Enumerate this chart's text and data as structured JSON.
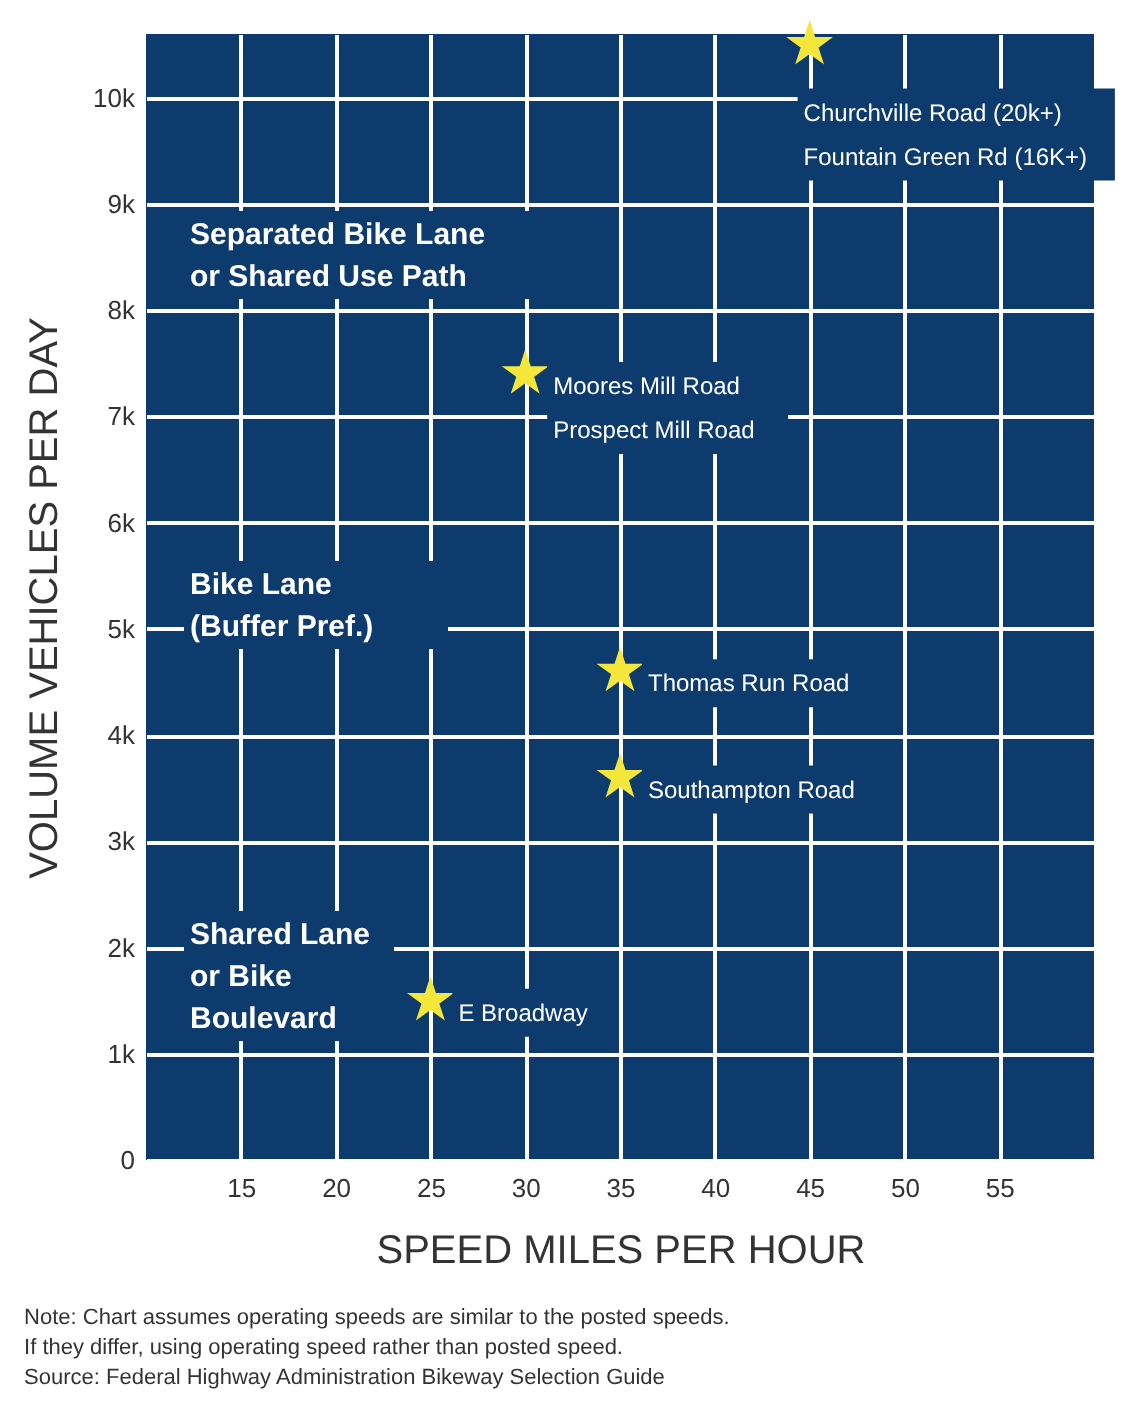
{
  "chart_data": {
    "type": "scatter",
    "xlabel": "SPEED   MILES PER HOUR",
    "ylabel": "VOLUME   VEHICLES PER DAY",
    "x": [
      25,
      30,
      35,
      35,
      45
    ],
    "series": [
      {
        "color": "#f5e63c",
        "values": [
          1500,
          7400,
          3600,
          4600,
          10500
        ]
      }
    ],
    "marker": "star",
    "xlim": [
      10,
      60
    ],
    "xticks": [
      15,
      20,
      25,
      30,
      35,
      40,
      45,
      50,
      55
    ],
    "ylim": [
      0,
      10600
    ],
    "yticks": [
      0,
      {
        "value": 1000,
        "label": "1k"
      },
      {
        "value": 2000,
        "label": "2k"
      },
      {
        "value": 3000,
        "label": "3k"
      },
      {
        "value": 4000,
        "label": "4k"
      },
      {
        "value": 5000,
        "label": "5k"
      },
      {
        "value": 6000,
        "label": "6k"
      },
      {
        "value": 7000,
        "label": "7k"
      },
      {
        "value": 8000,
        "label": "8k"
      },
      {
        "value": 9000,
        "label": "9k"
      },
      {
        "value": 10000,
        "label": "10k"
      }
    ],
    "grid": true,
    "annotations": [
      "Separated Bike Lane\nor Shared Use Path",
      "Bike Lane\n(Buffer Pref.)",
      "Shared Lane\nor Bike\nBoulevard",
      {
        "text": "E Broadway",
        "x": 25,
        "y": 1500
      },
      {
        "text": "Southampton Road",
        "x": 35,
        "y": 3600
      },
      {
        "text": "Thomas Run Road",
        "x": 35,
        "y": 4600
      },
      {
        "text": "Moores Mill Road\nProspect Mill Road",
        "x": 30,
        "y": 7400
      },
      {
        "text": "Churchville Road (20k+)\nFountain Green Rd (16K+)",
        "x": 45,
        "y": 10500
      },
      "Note: Chart assumes operating speeds are similar to the posted speeds.\nIf they differ, using operating speed rather than posted speed.",
      "Source: Federal Highway Administration Bikeway Selection Guide"
    ]
  }
}
